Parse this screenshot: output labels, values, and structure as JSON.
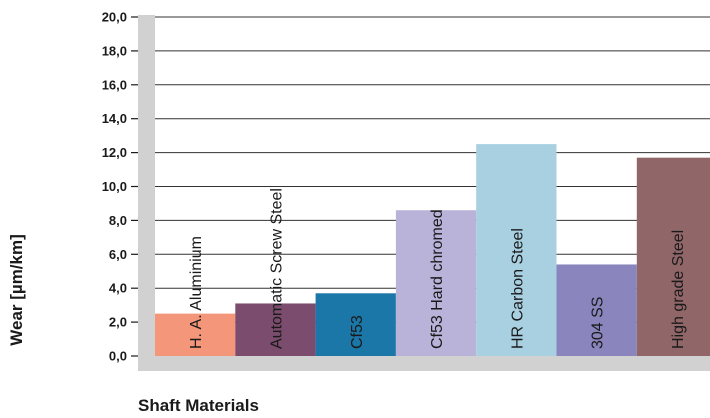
{
  "chart_data": {
    "type": "bar",
    "xlabel": "Shaft Materials",
    "ylabel": "Wear [µm/km]",
    "ylim": [
      0,
      20
    ],
    "yticks": [
      "0,0",
      "2,0",
      "4,0",
      "6,0",
      "8,0",
      "10,0",
      "12,0",
      "14,0",
      "16,0",
      "18,0",
      "20,0"
    ],
    "grid": true,
    "categories": [
      "H. A. Aluminium",
      "Automatic Screw Steel",
      "Cf53",
      "Cf53 Hard chromed",
      "HR Carbon Steel",
      "304 SS",
      "High grade Steel"
    ],
    "values": [
      2.5,
      3.1,
      3.7,
      8.6,
      12.5,
      5.4,
      11.7
    ],
    "colors": [
      "#f4967a",
      "#7b4c6d",
      "#1b77a7",
      "#b9b2d9",
      "#a8d0e1",
      "#8a85bd",
      "#916669"
    ],
    "frame_color": "#d1d1d1"
  }
}
